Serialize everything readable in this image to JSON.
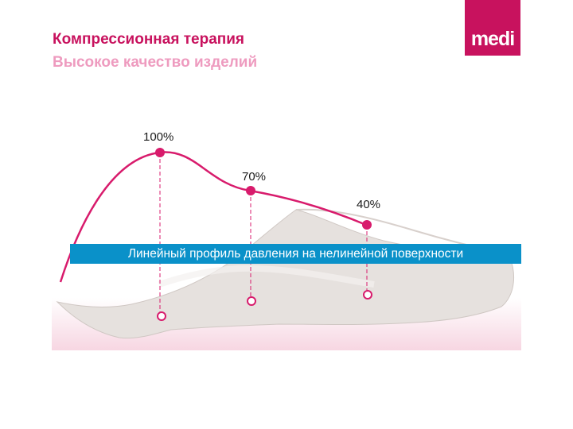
{
  "header": {
    "title": "Компрессионная терапия",
    "subtitle": "Высокое качество изделий"
  },
  "logo": {
    "text": "medi",
    "color": "#c8125e"
  },
  "diagram": {
    "curve_color": "#d81b6c",
    "band_color": "#0a91c9",
    "band_label": "Линейный профиль давления на нелинейной поверхности",
    "points": [
      {
        "label": "100%",
        "value": 100
      },
      {
        "label": "70%",
        "value": 70
      },
      {
        "label": "40%",
        "value": 40
      }
    ]
  }
}
